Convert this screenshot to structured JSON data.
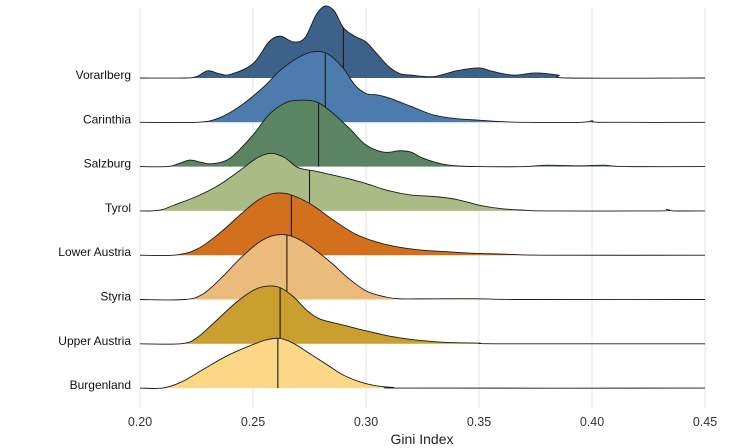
{
  "chart_data": {
    "type": "ridgeline",
    "xlabel": "Gini Index",
    "ylabel": "",
    "xlim": [
      0.2,
      0.45
    ],
    "xticks": [
      "0.20",
      "0.25",
      "0.30",
      "0.35",
      "0.40",
      "0.45"
    ],
    "grid": true,
    "series": [
      {
        "name": "Vorarlberg",
        "color": "#3d6289",
        "median": 0.29,
        "points": [
          [
            0.2,
            0
          ],
          [
            0.22,
            0
          ],
          [
            0.225,
            0.02
          ],
          [
            0.23,
            0.1
          ],
          [
            0.235,
            0.06
          ],
          [
            0.24,
            0.05
          ],
          [
            0.25,
            0.2
          ],
          [
            0.257,
            0.5
          ],
          [
            0.262,
            0.58
          ],
          [
            0.268,
            0.5
          ],
          [
            0.273,
            0.56
          ],
          [
            0.278,
            0.88
          ],
          [
            0.282,
            1.0
          ],
          [
            0.286,
            0.93
          ],
          [
            0.29,
            0.7
          ],
          [
            0.295,
            0.58
          ],
          [
            0.3,
            0.5
          ],
          [
            0.305,
            0.33
          ],
          [
            0.31,
            0.16
          ],
          [
            0.315,
            0.06
          ],
          [
            0.32,
            0.04
          ],
          [
            0.33,
            0.02
          ],
          [
            0.34,
            0.1
          ],
          [
            0.35,
            0.14
          ],
          [
            0.355,
            0.1
          ],
          [
            0.365,
            0.04
          ],
          [
            0.375,
            0.07
          ],
          [
            0.385,
            0.04
          ],
          [
            0.39,
            0
          ],
          [
            0.45,
            0
          ]
        ]
      },
      {
        "name": "Carinthia",
        "color": "#4e7bae",
        "median": 0.282,
        "points": [
          [
            0.2,
            0
          ],
          [
            0.225,
            0
          ],
          [
            0.235,
            0.06
          ],
          [
            0.245,
            0.24
          ],
          [
            0.255,
            0.5
          ],
          [
            0.262,
            0.72
          ],
          [
            0.27,
            0.9
          ],
          [
            0.277,
            0.98
          ],
          [
            0.283,
            0.95
          ],
          [
            0.29,
            0.75
          ],
          [
            0.295,
            0.52
          ],
          [
            0.3,
            0.4
          ],
          [
            0.305,
            0.38
          ],
          [
            0.31,
            0.34
          ],
          [
            0.32,
            0.22
          ],
          [
            0.33,
            0.1
          ],
          [
            0.34,
            0.05
          ],
          [
            0.35,
            0.03
          ],
          [
            0.36,
            0.01
          ],
          [
            0.37,
            0
          ],
          [
            0.395,
            0
          ],
          [
            0.4,
            0.02
          ],
          [
            0.405,
            0
          ],
          [
            0.45,
            0
          ]
        ]
      },
      {
        "name": "Salzburg",
        "color": "#5b8462",
        "median": 0.279,
        "points": [
          [
            0.2,
            0
          ],
          [
            0.212,
            0
          ],
          [
            0.217,
            0.04
          ],
          [
            0.222,
            0.09
          ],
          [
            0.227,
            0.06
          ],
          [
            0.232,
            0.04
          ],
          [
            0.24,
            0.12
          ],
          [
            0.25,
            0.44
          ],
          [
            0.257,
            0.72
          ],
          [
            0.264,
            0.88
          ],
          [
            0.27,
            0.92
          ],
          [
            0.278,
            0.9
          ],
          [
            0.285,
            0.75
          ],
          [
            0.293,
            0.52
          ],
          [
            0.3,
            0.3
          ],
          [
            0.308,
            0.2
          ],
          [
            0.315,
            0.22
          ],
          [
            0.32,
            0.2
          ],
          [
            0.325,
            0.12
          ],
          [
            0.333,
            0.04
          ],
          [
            0.34,
            0.01
          ],
          [
            0.35,
            0
          ],
          [
            0.37,
            0
          ],
          [
            0.38,
            0.02
          ],
          [
            0.395,
            0.01
          ],
          [
            0.405,
            0.02
          ],
          [
            0.415,
            0
          ],
          [
            0.45,
            0
          ]
        ]
      },
      {
        "name": "Tyrol",
        "color": "#abbb85",
        "median": 0.275,
        "points": [
          [
            0.2,
            0
          ],
          [
            0.205,
            0
          ],
          [
            0.21,
            0.02
          ],
          [
            0.215,
            0.08
          ],
          [
            0.225,
            0.2
          ],
          [
            0.235,
            0.36
          ],
          [
            0.245,
            0.58
          ],
          [
            0.252,
            0.74
          ],
          [
            0.258,
            0.8
          ],
          [
            0.264,
            0.74
          ],
          [
            0.27,
            0.6
          ],
          [
            0.278,
            0.55
          ],
          [
            0.285,
            0.5
          ],
          [
            0.293,
            0.44
          ],
          [
            0.3,
            0.38
          ],
          [
            0.31,
            0.28
          ],
          [
            0.32,
            0.22
          ],
          [
            0.33,
            0.2
          ],
          [
            0.34,
            0.16
          ],
          [
            0.35,
            0.08
          ],
          [
            0.36,
            0.03
          ],
          [
            0.37,
            0.01
          ],
          [
            0.38,
            0
          ],
          [
            0.43,
            0
          ],
          [
            0.433,
            0.02
          ],
          [
            0.436,
            0
          ],
          [
            0.45,
            0
          ]
        ]
      },
      {
        "name": "Lower Austria",
        "color": "#d2701d",
        "median": 0.267,
        "points": [
          [
            0.2,
            0
          ],
          [
            0.215,
            0
          ],
          [
            0.225,
            0.08
          ],
          [
            0.235,
            0.3
          ],
          [
            0.245,
            0.58
          ],
          [
            0.252,
            0.76
          ],
          [
            0.258,
            0.85
          ],
          [
            0.264,
            0.86
          ],
          [
            0.27,
            0.8
          ],
          [
            0.277,
            0.68
          ],
          [
            0.285,
            0.5
          ],
          [
            0.295,
            0.3
          ],
          [
            0.305,
            0.18
          ],
          [
            0.315,
            0.11
          ],
          [
            0.325,
            0.07
          ],
          [
            0.335,
            0.05
          ],
          [
            0.345,
            0.03
          ],
          [
            0.355,
            0.02
          ],
          [
            0.365,
            0.01
          ],
          [
            0.38,
            0
          ],
          [
            0.45,
            0
          ]
        ]
      },
      {
        "name": "Styria",
        "color": "#ebbb7c",
        "median": 0.265,
        "points": [
          [
            0.2,
            0
          ],
          [
            0.22,
            0
          ],
          [
            0.228,
            0.08
          ],
          [
            0.236,
            0.3
          ],
          [
            0.244,
            0.56
          ],
          [
            0.252,
            0.78
          ],
          [
            0.258,
            0.88
          ],
          [
            0.264,
            0.9
          ],
          [
            0.27,
            0.84
          ],
          [
            0.277,
            0.7
          ],
          [
            0.285,
            0.5
          ],
          [
            0.292,
            0.3
          ],
          [
            0.3,
            0.12
          ],
          [
            0.308,
            0.04
          ],
          [
            0.315,
            0.01
          ],
          [
            0.33,
            0.01
          ],
          [
            0.35,
            0.01
          ],
          [
            0.37,
            0
          ],
          [
            0.45,
            0
          ]
        ]
      },
      {
        "name": "Upper Austria",
        "color": "#c9a02f",
        "median": 0.262,
        "points": [
          [
            0.2,
            0
          ],
          [
            0.218,
            0
          ],
          [
            0.225,
            0.08
          ],
          [
            0.233,
            0.3
          ],
          [
            0.242,
            0.56
          ],
          [
            0.25,
            0.74
          ],
          [
            0.256,
            0.8
          ],
          [
            0.262,
            0.78
          ],
          [
            0.268,
            0.65
          ],
          [
            0.274,
            0.46
          ],
          [
            0.28,
            0.34
          ],
          [
            0.29,
            0.26
          ],
          [
            0.3,
            0.18
          ],
          [
            0.31,
            0.11
          ],
          [
            0.32,
            0.06
          ],
          [
            0.33,
            0.03
          ],
          [
            0.34,
            0.015
          ],
          [
            0.35,
            0.01
          ],
          [
            0.36,
            0
          ],
          [
            0.45,
            0
          ]
        ]
      },
      {
        "name": "Burgenland",
        "color": "#fcd786",
        "median": 0.261,
        "points": [
          [
            0.2,
            0
          ],
          [
            0.21,
            0
          ],
          [
            0.218,
            0.08
          ],
          [
            0.228,
            0.26
          ],
          [
            0.238,
            0.44
          ],
          [
            0.248,
            0.58
          ],
          [
            0.256,
            0.67
          ],
          [
            0.262,
            0.69
          ],
          [
            0.268,
            0.62
          ],
          [
            0.275,
            0.48
          ],
          [
            0.283,
            0.32
          ],
          [
            0.29,
            0.18
          ],
          [
            0.298,
            0.08
          ],
          [
            0.305,
            0.03
          ],
          [
            0.312,
            0.01
          ],
          [
            0.32,
            0
          ],
          [
            0.45,
            0
          ]
        ]
      }
    ]
  }
}
